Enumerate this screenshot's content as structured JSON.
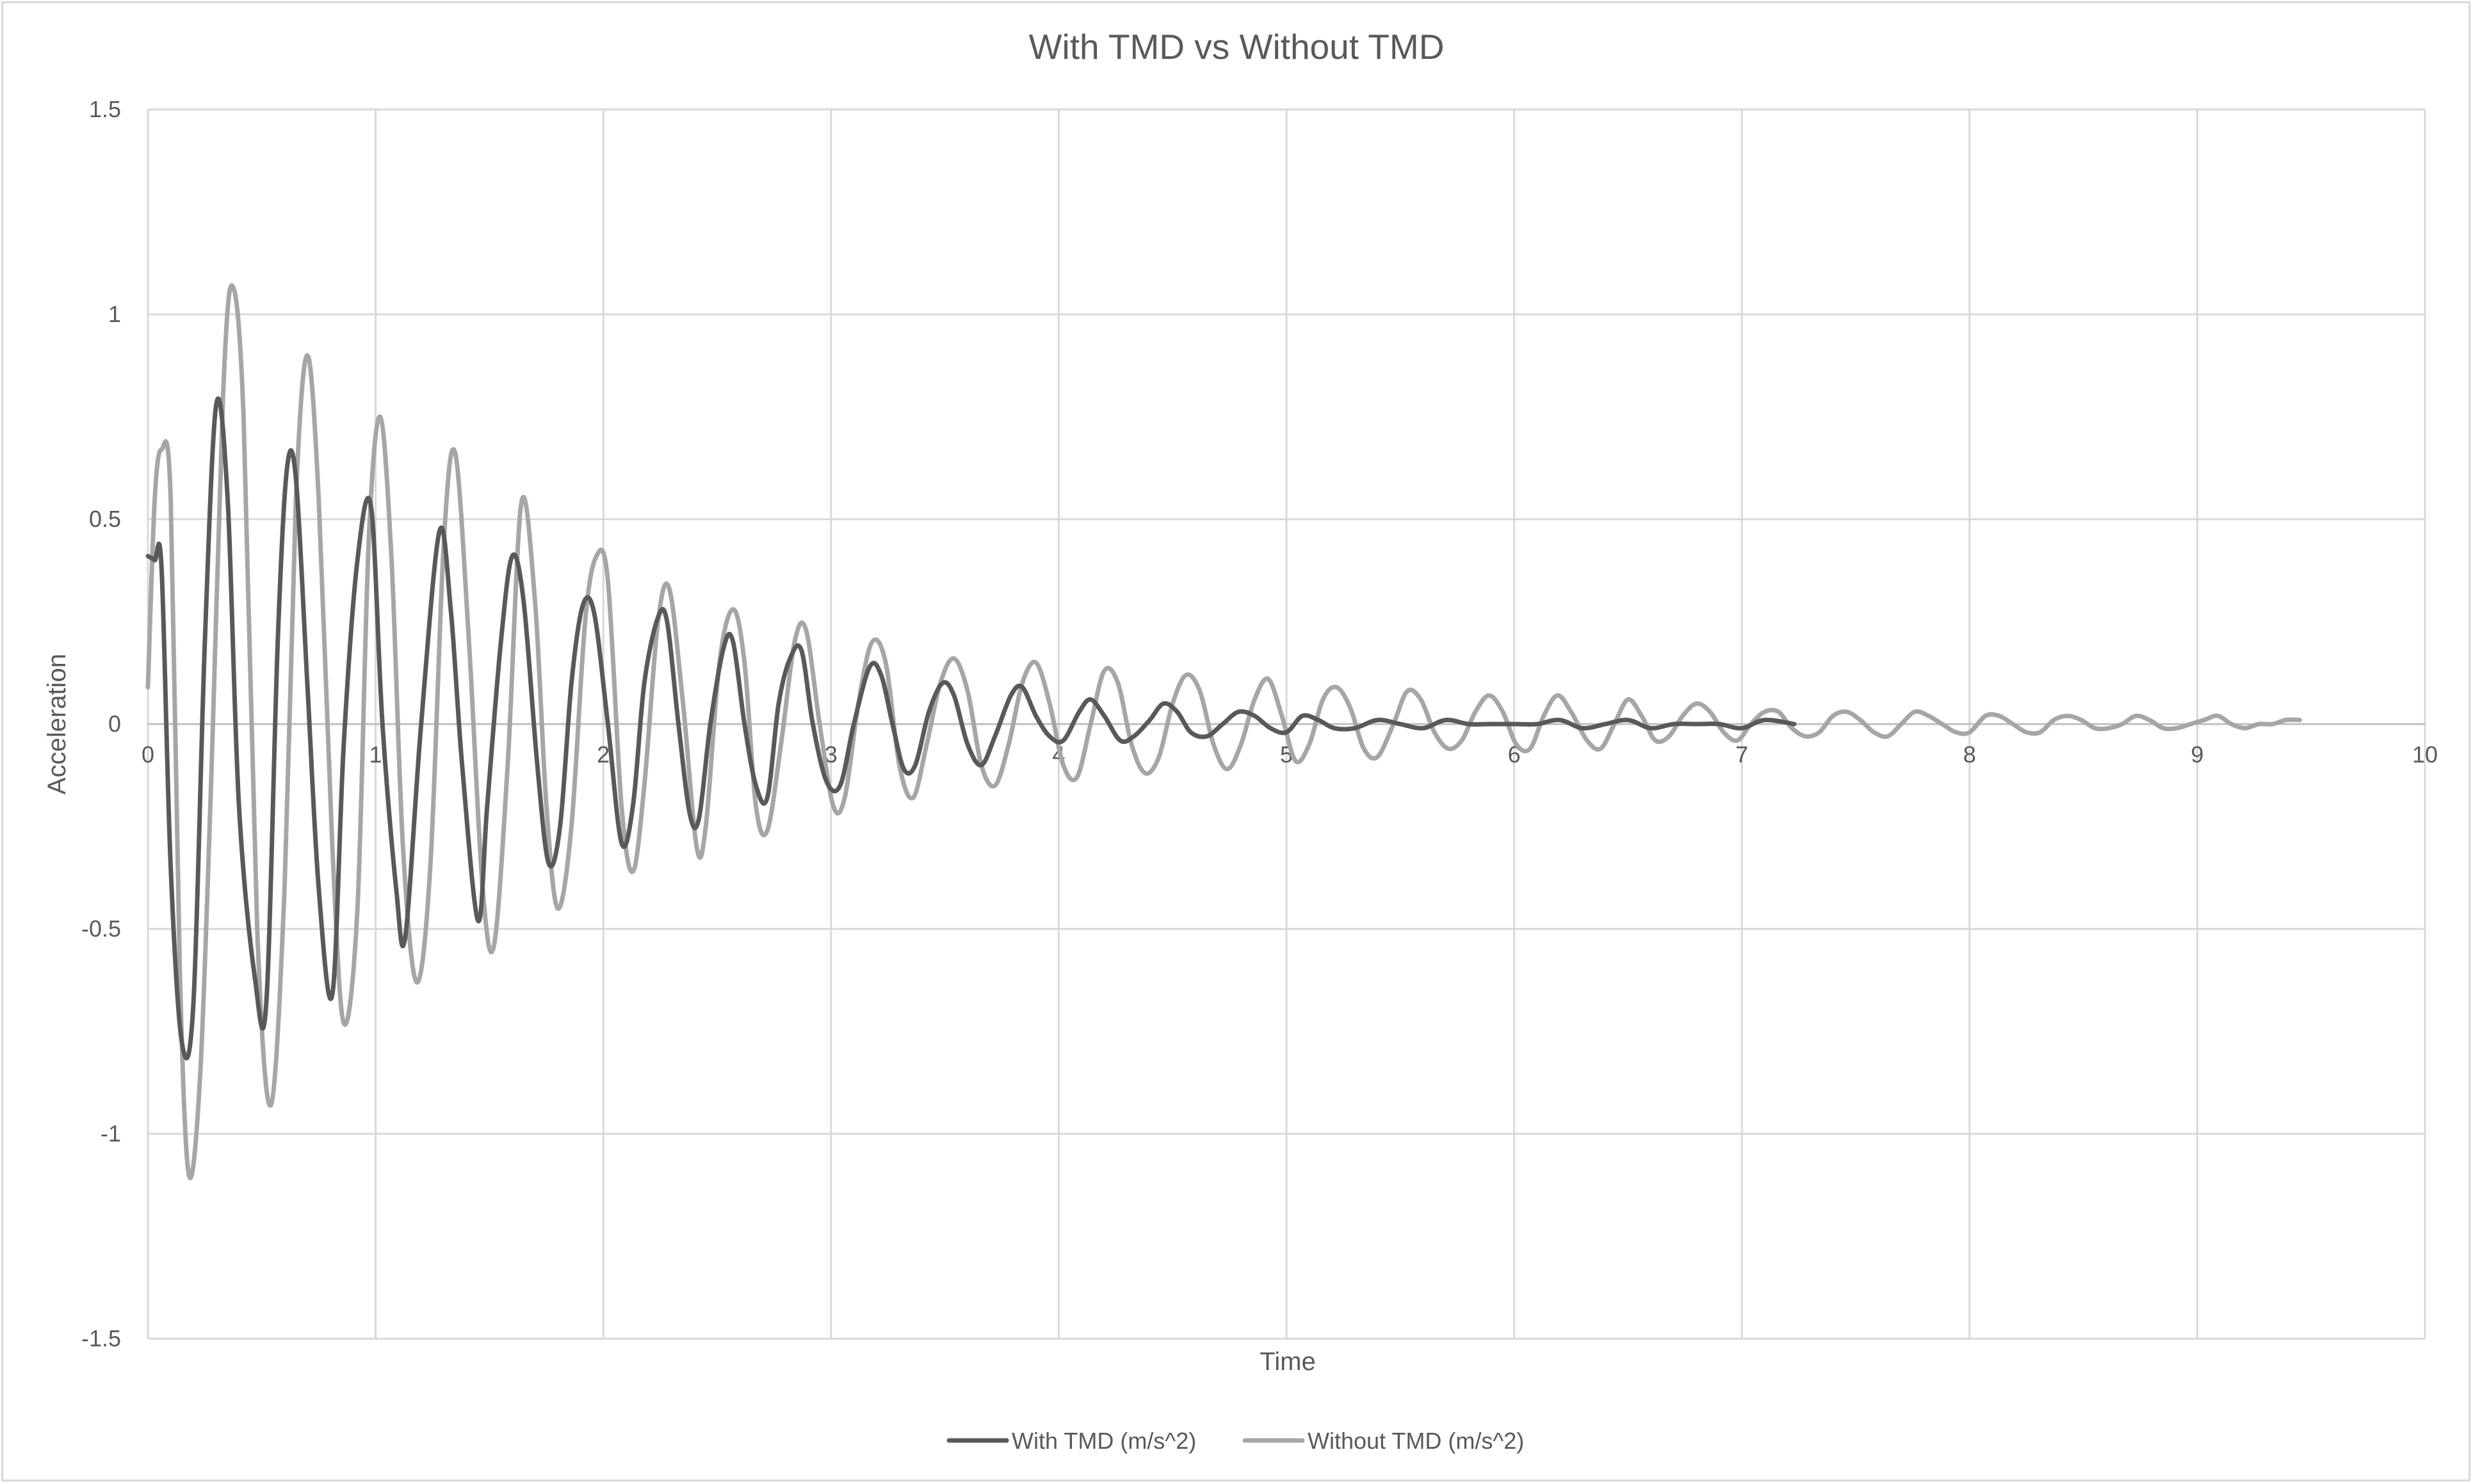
{
  "chart_data": {
    "type": "line",
    "title": "With TMD vs Without TMD",
    "xlabel": "Time",
    "ylabel": "Acceleration",
    "xlim": [
      0,
      10
    ],
    "ylim": [
      -1.5,
      1.5
    ],
    "x_ticks": [
      "0",
      "1",
      "2",
      "3",
      "4",
      "5",
      "6",
      "7",
      "8",
      "9",
      "10"
    ],
    "y_ticks": [
      "1.5",
      "1",
      "0.5",
      "0",
      "-0.5",
      "-1",
      "-1.5"
    ],
    "grid": true,
    "legend_position": "bottom",
    "series": [
      {
        "name": "With TMD (m/s^2)",
        "color": "#595959",
        "points": [
          [
            0.0,
            0.41
          ],
          [
            0.03,
            0.4
          ],
          [
            0.06,
            0.38
          ],
          [
            0.1,
            -0.35
          ],
          [
            0.15,
            -0.78
          ],
          [
            0.2,
            -0.68
          ],
          [
            0.25,
            0.2
          ],
          [
            0.3,
            0.78
          ],
          [
            0.35,
            0.55
          ],
          [
            0.4,
            -0.2
          ],
          [
            0.47,
            -0.62
          ],
          [
            0.52,
            -0.68
          ],
          [
            0.57,
            0.2
          ],
          [
            0.61,
            0.62
          ],
          [
            0.65,
            0.6
          ],
          [
            0.7,
            0.1
          ],
          [
            0.75,
            -0.4
          ],
          [
            0.81,
            -0.66
          ],
          [
            0.86,
            -0.05
          ],
          [
            0.92,
            0.4
          ],
          [
            0.98,
            0.53
          ],
          [
            1.03,
            0.0
          ],
          [
            1.09,
            -0.4
          ],
          [
            1.13,
            -0.52
          ],
          [
            1.2,
            0.0
          ],
          [
            1.28,
            0.47
          ],
          [
            1.33,
            0.28
          ],
          [
            1.38,
            -0.1
          ],
          [
            1.45,
            -0.48
          ],
          [
            1.49,
            -0.2
          ],
          [
            1.55,
            0.2
          ],
          [
            1.6,
            0.41
          ],
          [
            1.65,
            0.3
          ],
          [
            1.71,
            -0.1
          ],
          [
            1.76,
            -0.34
          ],
          [
            1.81,
            -0.25
          ],
          [
            1.86,
            0.1
          ],
          [
            1.91,
            0.29
          ],
          [
            1.96,
            0.27
          ],
          [
            2.02,
            0.0
          ],
          [
            2.08,
            -0.29
          ],
          [
            2.13,
            -0.2
          ],
          [
            2.18,
            0.1
          ],
          [
            2.24,
            0.26
          ],
          [
            2.28,
            0.25
          ],
          [
            2.33,
            0.0
          ],
          [
            2.38,
            -0.22
          ],
          [
            2.42,
            -0.23
          ],
          [
            2.47,
            0.0
          ],
          [
            2.53,
            0.19
          ],
          [
            2.57,
            0.2
          ],
          [
            2.62,
            0.0
          ],
          [
            2.67,
            -0.15
          ],
          [
            2.72,
            -0.18
          ],
          [
            2.77,
            0.05
          ],
          [
            2.82,
            0.16
          ],
          [
            2.87,
            0.18
          ],
          [
            2.92,
            0.0
          ],
          [
            2.98,
            -0.14
          ],
          [
            3.04,
            -0.15
          ],
          [
            3.1,
            0.0
          ],
          [
            3.17,
            0.14
          ],
          [
            3.22,
            0.12
          ],
          [
            3.27,
            0.0
          ],
          [
            3.32,
            -0.11
          ],
          [
            3.37,
            -0.1
          ],
          [
            3.43,
            0.03
          ],
          [
            3.49,
            0.1
          ],
          [
            3.54,
            0.07
          ],
          [
            3.6,
            -0.05
          ],
          [
            3.66,
            -0.1
          ],
          [
            3.72,
            -0.03
          ],
          [
            3.79,
            0.07
          ],
          [
            3.84,
            0.09
          ],
          [
            3.9,
            0.02
          ],
          [
            3.96,
            -0.03
          ],
          [
            4.02,
            -0.04
          ],
          [
            4.09,
            0.03
          ],
          [
            4.14,
            0.06
          ],
          [
            4.2,
            0.02
          ],
          [
            4.27,
            -0.04
          ],
          [
            4.33,
            -0.03
          ],
          [
            4.4,
            0.01
          ],
          [
            4.46,
            0.05
          ],
          [
            4.52,
            0.03
          ],
          [
            4.58,
            -0.02
          ],
          [
            4.65,
            -0.03
          ],
          [
            4.72,
            0.0
          ],
          [
            4.79,
            0.03
          ],
          [
            4.86,
            0.02
          ],
          [
            4.93,
            -0.01
          ],
          [
            5.0,
            -0.02
          ],
          [
            5.07,
            0.02
          ],
          [
            5.14,
            0.01
          ],
          [
            5.21,
            -0.01
          ],
          [
            5.3,
            -0.01
          ],
          [
            5.4,
            0.01
          ],
          [
            5.5,
            0.0
          ],
          [
            5.6,
            -0.01
          ],
          [
            5.7,
            0.01
          ],
          [
            5.8,
            0.0
          ],
          [
            5.9,
            0.0
          ],
          [
            6.0,
            0.0
          ],
          [
            6.1,
            0.0
          ],
          [
            6.2,
            0.01
          ],
          [
            6.3,
            -0.01
          ],
          [
            6.4,
            0.0
          ],
          [
            6.5,
            0.01
          ],
          [
            6.6,
            -0.01
          ],
          [
            6.7,
            0.0
          ],
          [
            6.8,
            0.0
          ],
          [
            6.9,
            0.0
          ],
          [
            7.0,
            -0.01
          ],
          [
            7.1,
            0.01
          ],
          [
            7.23,
            0.0
          ]
        ]
      },
      {
        "name": "Without TMD (m/s^2)",
        "color": "#a6a6a6",
        "points": [
          [
            0.0,
            0.09
          ],
          [
            0.03,
            0.55
          ],
          [
            0.06,
            0.67
          ],
          [
            0.1,
            0.55
          ],
          [
            0.14,
            -0.6
          ],
          [
            0.18,
            -1.1
          ],
          [
            0.23,
            -0.85
          ],
          [
            0.28,
            -0.1
          ],
          [
            0.33,
            0.8
          ],
          [
            0.37,
            1.07
          ],
          [
            0.42,
            0.75
          ],
          [
            0.48,
            -0.5
          ],
          [
            0.54,
            -0.93
          ],
          [
            0.6,
            -0.4
          ],
          [
            0.65,
            0.55
          ],
          [
            0.7,
            0.9
          ],
          [
            0.75,
            0.55
          ],
          [
            0.81,
            -0.3
          ],
          [
            0.86,
            -0.73
          ],
          [
            0.92,
            -0.45
          ],
          [
            0.97,
            0.45
          ],
          [
            1.02,
            0.75
          ],
          [
            1.07,
            0.4
          ],
          [
            1.12,
            -0.3
          ],
          [
            1.18,
            -0.63
          ],
          [
            1.24,
            -0.35
          ],
          [
            1.3,
            0.45
          ],
          [
            1.35,
            0.66
          ],
          [
            1.41,
            0.2
          ],
          [
            1.47,
            -0.4
          ],
          [
            1.52,
            -0.54
          ],
          [
            1.58,
            -0.1
          ],
          [
            1.64,
            0.54
          ],
          [
            1.7,
            0.3
          ],
          [
            1.75,
            -0.2
          ],
          [
            1.8,
            -0.45
          ],
          [
            1.86,
            -0.25
          ],
          [
            1.92,
            0.25
          ],
          [
            1.97,
            0.41
          ],
          [
            2.02,
            0.35
          ],
          [
            2.08,
            -0.2
          ],
          [
            2.13,
            -0.36
          ],
          [
            2.18,
            -0.15
          ],
          [
            2.24,
            0.25
          ],
          [
            2.29,
            0.33
          ],
          [
            2.35,
            0.05
          ],
          [
            2.41,
            -0.3
          ],
          [
            2.45,
            -0.25
          ],
          [
            2.51,
            0.15
          ],
          [
            2.57,
            0.28
          ],
          [
            2.62,
            0.15
          ],
          [
            2.67,
            -0.2
          ],
          [
            2.72,
            -0.26
          ],
          [
            2.78,
            -0.05
          ],
          [
            2.84,
            0.2
          ],
          [
            2.89,
            0.23
          ],
          [
            2.95,
            0.0
          ],
          [
            3.01,
            -0.2
          ],
          [
            3.06,
            -0.18
          ],
          [
            3.12,
            0.05
          ],
          [
            3.18,
            0.2
          ],
          [
            3.24,
            0.15
          ],
          [
            3.3,
            -0.1
          ],
          [
            3.36,
            -0.18
          ],
          [
            3.42,
            -0.05
          ],
          [
            3.48,
            0.1
          ],
          [
            3.54,
            0.16
          ],
          [
            3.6,
            0.08
          ],
          [
            3.66,
            -0.1
          ],
          [
            3.72,
            -0.15
          ],
          [
            3.78,
            -0.05
          ],
          [
            3.84,
            0.1
          ],
          [
            3.9,
            0.15
          ],
          [
            3.96,
            0.05
          ],
          [
            4.02,
            -0.1
          ],
          [
            4.08,
            -0.13
          ],
          [
            4.14,
            0.0
          ],
          [
            4.2,
            0.13
          ],
          [
            4.26,
            0.1
          ],
          [
            4.32,
            -0.05
          ],
          [
            4.38,
            -0.12
          ],
          [
            4.44,
            -0.08
          ],
          [
            4.5,
            0.05
          ],
          [
            4.56,
            0.12
          ],
          [
            4.62,
            0.08
          ],
          [
            4.68,
            -0.05
          ],
          [
            4.74,
            -0.11
          ],
          [
            4.8,
            -0.05
          ],
          [
            4.86,
            0.06
          ],
          [
            4.92,
            0.11
          ],
          [
            4.98,
            0.02
          ],
          [
            5.04,
            -0.09
          ],
          [
            5.1,
            -0.05
          ],
          [
            5.16,
            0.06
          ],
          [
            5.22,
            0.09
          ],
          [
            5.28,
            0.04
          ],
          [
            5.34,
            -0.06
          ],
          [
            5.4,
            -0.08
          ],
          [
            5.47,
            0.0
          ],
          [
            5.53,
            0.08
          ],
          [
            5.59,
            0.06
          ],
          [
            5.65,
            -0.02
          ],
          [
            5.71,
            -0.06
          ],
          [
            5.77,
            -0.04
          ],
          [
            5.83,
            0.03
          ],
          [
            5.89,
            0.07
          ],
          [
            5.95,
            0.03
          ],
          [
            6.01,
            -0.05
          ],
          [
            6.07,
            -0.06
          ],
          [
            6.13,
            0.02
          ],
          [
            6.19,
            0.07
          ],
          [
            6.25,
            0.03
          ],
          [
            6.32,
            -0.04
          ],
          [
            6.38,
            -0.06
          ],
          [
            6.44,
            0.0
          ],
          [
            6.5,
            0.06
          ],
          [
            6.56,
            0.02
          ],
          [
            6.62,
            -0.04
          ],
          [
            6.68,
            -0.03
          ],
          [
            6.74,
            0.02
          ],
          [
            6.8,
            0.05
          ],
          [
            6.86,
            0.03
          ],
          [
            6.92,
            -0.02
          ],
          [
            6.98,
            -0.04
          ],
          [
            7.04,
            0.0
          ],
          [
            7.1,
            0.03
          ],
          [
            7.16,
            0.03
          ],
          [
            7.22,
            -0.01
          ],
          [
            7.28,
            -0.03
          ],
          [
            7.34,
            -0.02
          ],
          [
            7.4,
            0.02
          ],
          [
            7.46,
            0.03
          ],
          [
            7.52,
            0.01
          ],
          [
            7.58,
            -0.02
          ],
          [
            7.64,
            -0.03
          ],
          [
            7.7,
            0.0
          ],
          [
            7.76,
            0.03
          ],
          [
            7.82,
            0.02
          ],
          [
            7.88,
            0.0
          ],
          [
            7.94,
            -0.02
          ],
          [
            8.0,
            -0.02
          ],
          [
            8.07,
            0.02
          ],
          [
            8.13,
            0.02
          ],
          [
            8.19,
            0.0
          ],
          [
            8.25,
            -0.02
          ],
          [
            8.31,
            -0.02
          ],
          [
            8.37,
            0.01
          ],
          [
            8.43,
            0.02
          ],
          [
            8.49,
            0.01
          ],
          [
            8.55,
            -0.01
          ],
          [
            8.61,
            -0.01
          ],
          [
            8.67,
            0.0
          ],
          [
            8.73,
            0.02
          ],
          [
            8.79,
            0.01
          ],
          [
            8.85,
            -0.01
          ],
          [
            8.91,
            -0.01
          ],
          [
            8.97,
            0.0
          ],
          [
            9.03,
            0.01
          ],
          [
            9.09,
            0.02
          ],
          [
            9.15,
            0.0
          ],
          [
            9.21,
            -0.01
          ],
          [
            9.27,
            0.0
          ],
          [
            9.33,
            0.0
          ],
          [
            9.39,
            0.01
          ],
          [
            9.45,
            0.01
          ]
        ]
      }
    ]
  }
}
